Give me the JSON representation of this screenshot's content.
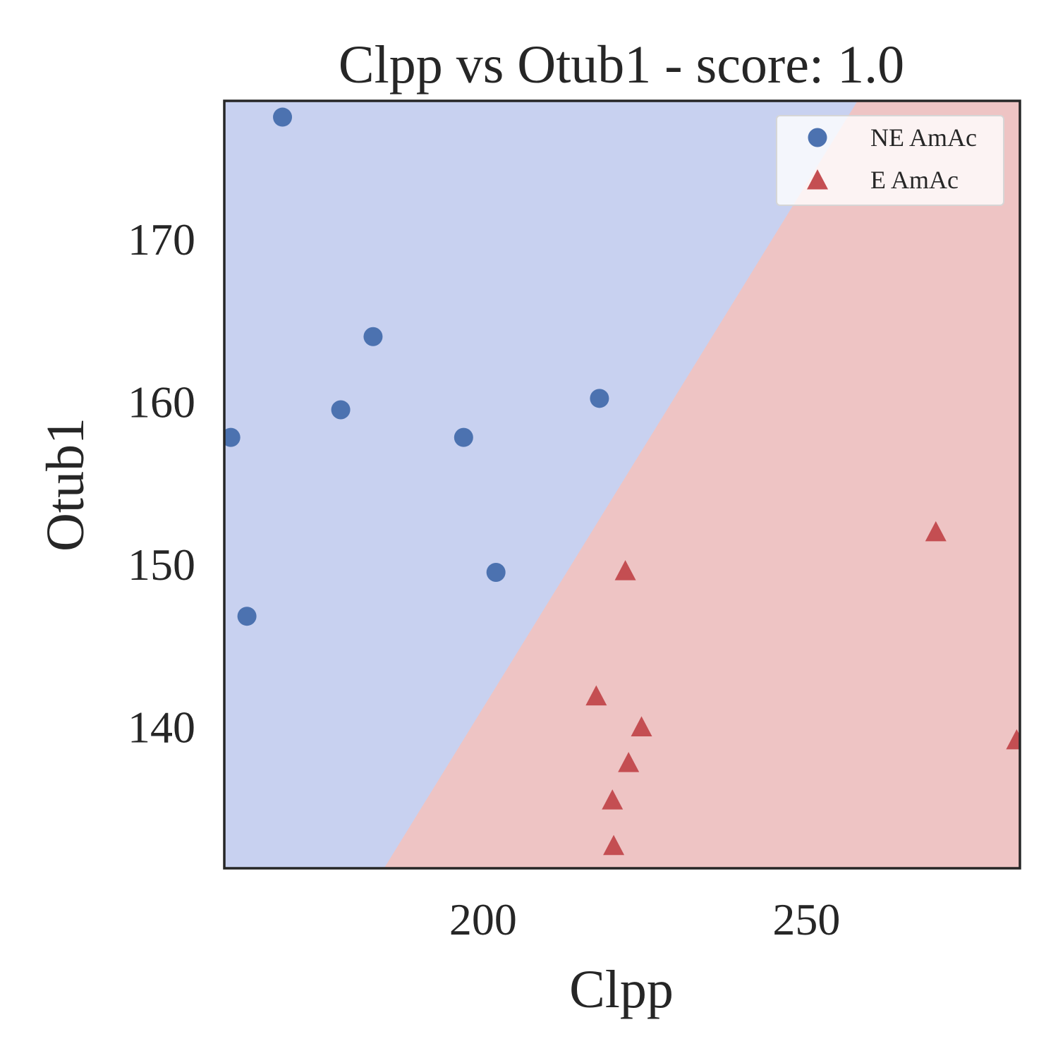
{
  "chart_data": {
    "type": "scatter",
    "title": "Clpp vs Otub1 - score: 1.0",
    "xlabel": "Clpp",
    "ylabel": "Otub1",
    "xlim": [
      160,
      283
    ],
    "ylim": [
      131.3,
      178.5
    ],
    "xticks": [
      200,
      250
    ],
    "yticks": [
      140,
      150,
      160,
      170
    ],
    "grid": false,
    "legend_position": "top-right",
    "decision_boundary": {
      "points": [
        [
          184.7,
          131.3
        ],
        [
          257.9,
          178.5
        ]
      ],
      "region_left_color": "#c8d1f0",
      "region_right_color": "#eec4c4"
    },
    "series": [
      {
        "name": "NE AmAc",
        "marker": "circle",
        "color": "#4c72b0",
        "points": [
          [
            169,
            177.5
          ],
          [
            183,
            164
          ],
          [
            178,
            159.5
          ],
          [
            161,
            157.8
          ],
          [
            197,
            157.8
          ],
          [
            218,
            160.2
          ],
          [
            202,
            149.5
          ],
          [
            163.5,
            146.8
          ]
        ]
      },
      {
        "name": "E AmAc",
        "marker": "triangle",
        "color": "#c44e52",
        "points": [
          [
            270,
            152
          ],
          [
            222,
            149.6
          ],
          [
            217.5,
            141.9
          ],
          [
            224.5,
            140
          ],
          [
            222.5,
            137.8
          ],
          [
            220,
            135.5
          ],
          [
            220.2,
            132.7
          ],
          [
            282.5,
            139.2
          ]
        ]
      }
    ]
  }
}
